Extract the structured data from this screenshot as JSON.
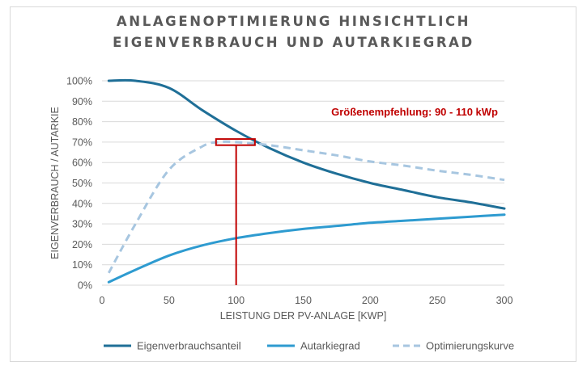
{
  "chart_data": {
    "type": "line",
    "title_lines": [
      "ANLAGENOPTIMIERUNG HINSICHTLICH",
      "EIGENVERBRAUCH UND AUTARKIEGRAD"
    ],
    "xlabel": "LEISTUNG DER PV-ANLAGE [KWP]",
    "ylabel": "EIGENVERBRAUCH / AUTARKIE",
    "xlim": [
      0,
      300
    ],
    "ylim": [
      0,
      100
    ],
    "x_ticks": [
      0,
      50,
      100,
      150,
      200,
      250,
      300
    ],
    "y_ticks": [
      0,
      10,
      20,
      30,
      40,
      50,
      60,
      70,
      80,
      90,
      100
    ],
    "y_tick_labels": [
      "0%",
      "10%",
      "20%",
      "30%",
      "40%",
      "50%",
      "60%",
      "70%",
      "80%",
      "90%",
      "100%"
    ],
    "grid": "horizontal",
    "legend_position": "bottom",
    "series": [
      {
        "name": "Eigenverbrauchsanteil",
        "color": "#1f6f97",
        "style": "solid",
        "x": [
          5,
          25,
          50,
          75,
          100,
          125,
          150,
          175,
          200,
          225,
          250,
          275,
          300
        ],
        "y": [
          100,
          100,
          96.5,
          85.5,
          75.5,
          67,
          60,
          54.5,
          50,
          46.5,
          43,
          40.5,
          37.5
        ]
      },
      {
        "name": "Autarkiegrad",
        "color": "#2e9bd0",
        "style": "solid",
        "x": [
          5,
          25,
          50,
          75,
          100,
          125,
          150,
          175,
          200,
          225,
          250,
          275,
          300
        ],
        "y": [
          1.5,
          7.5,
          14.5,
          19.5,
          23,
          25.5,
          27.5,
          29,
          30.5,
          31.5,
          32.5,
          33.5,
          34.5
        ]
      },
      {
        "name": "Optimierungskurve",
        "color": "#a7c6e0",
        "style": "dashed",
        "x": [
          5,
          25,
          50,
          75,
          87,
          100,
          125,
          150,
          175,
          200,
          225,
          250,
          275,
          300
        ],
        "y": [
          6,
          30,
          56.5,
          68,
          70,
          70,
          68.5,
          66,
          63.5,
          60.5,
          58.5,
          56,
          54,
          51.5
        ]
      }
    ],
    "annotation": {
      "text": "Größenempfehlung: 90 - 110 kWp",
      "color": "#c00000",
      "box_x_range": [
        85,
        114
      ],
      "box_y_range": [
        68.5,
        71.5
      ],
      "marker_x": 100
    }
  }
}
